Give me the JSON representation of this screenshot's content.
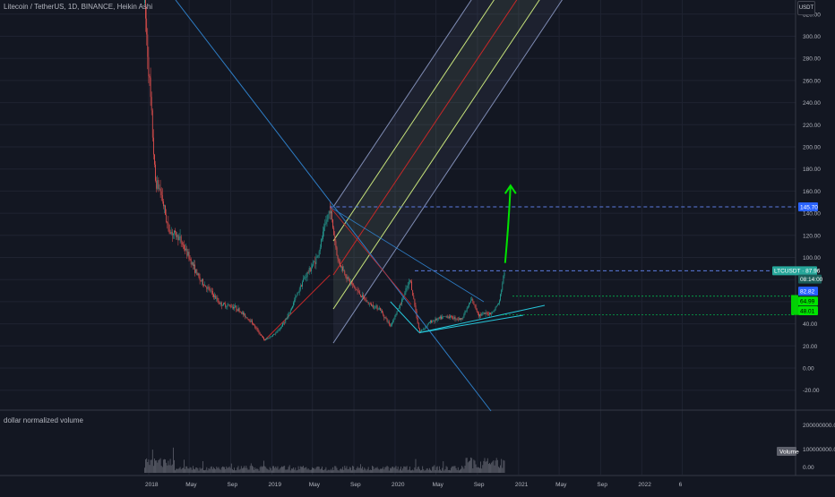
{
  "header": {
    "symbol_line": "Litecoin / TetherUS, 1D, BINANCE, Heikin Ashi",
    "currency": "USDT"
  },
  "volume_pane": {
    "title": "dollar normalized volume",
    "badge": "Volume",
    "y_ticks": [
      "200000000.00",
      "100000000.00",
      "0.00"
    ]
  },
  "chart_data": {
    "type": "candlestick",
    "title": "Litecoin / TetherUS, 1D, BINANCE, Heikin Ashi",
    "ylabel": "",
    "ylim": [
      -30,
      330
    ],
    "y_ticks": [
      320,
      300,
      280,
      260,
      240,
      220,
      200,
      180,
      160,
      140,
      120,
      100,
      80,
      60,
      40,
      20,
      0,
      -20
    ],
    "y_tick_labels": [
      "320.00",
      "300.00",
      "280.00",
      "260.00",
      "240.00",
      "220.00",
      "200.00",
      "180.00",
      "160.00",
      "140.00",
      "120.00",
      "100.00",
      "80.00",
      "60.00",
      "40.00",
      "20.00",
      "0.00",
      "-20.00"
    ],
    "x_ticks": [
      "2018",
      "May",
      "Sep",
      "2019",
      "May",
      "Sep",
      "2020",
      "May",
      "Sep",
      "2021",
      "May",
      "Sep",
      "2022",
      "6"
    ],
    "price_path": [
      [
        "2017-12-20",
        330
      ],
      [
        "2018-01-05",
        250
      ],
      [
        "2018-01-20",
        170
      ],
      [
        "2018-02-05",
        160
      ],
      [
        "2018-03-01",
        125
      ],
      [
        "2018-04-01",
        118
      ],
      [
        "2018-05-01",
        100
      ],
      [
        "2018-06-01",
        80
      ],
      [
        "2018-07-01",
        70
      ],
      [
        "2018-08-01",
        58
      ],
      [
        "2018-09-15",
        55
      ],
      [
        "2018-11-01",
        42
      ],
      [
        "2018-12-10",
        25
      ],
      [
        "2019-01-15",
        32
      ],
      [
        "2019-02-15",
        45
      ],
      [
        "2019-04-01",
        78
      ],
      [
        "2019-05-15",
        100
      ],
      [
        "2019-06-22",
        145
      ],
      [
        "2019-07-15",
        98
      ],
      [
        "2019-08-15",
        80
      ],
      [
        "2019-09-15",
        68
      ],
      [
        "2019-10-15",
        58
      ],
      [
        "2019-11-15",
        54
      ],
      [
        "2019-12-18",
        38
      ],
      [
        "2020-01-20",
        60
      ],
      [
        "2020-02-15",
        80
      ],
      [
        "2020-03-13",
        32
      ],
      [
        "2020-04-15",
        42
      ],
      [
        "2020-06-01",
        47
      ],
      [
        "2020-07-15",
        44
      ],
      [
        "2020-08-15",
        62
      ],
      [
        "2020-09-05",
        48
      ],
      [
        "2020-10-15",
        50
      ],
      [
        "2020-11-05",
        60
      ],
      [
        "2020-11-20",
        87.96
      ]
    ],
    "volume_series": {
      "name": "dollar normalized volume",
      "max": 230000000
    },
    "annotations": {
      "price_tags": [
        {
          "label": "LTCUSDT",
          "value": "87.96",
          "color": "#26a69a"
        },
        {
          "label": "",
          "value": "08:14:00",
          "color": "#26a69a"
        },
        {
          "label": "",
          "value": "145.70",
          "color": "#2962ff"
        },
        {
          "label": "",
          "value": "82.82",
          "color": "#2962ff"
        },
        {
          "label": "",
          "value": "64.99",
          "color": "#00e400"
        },
        {
          "label": "",
          "value": "48.01",
          "color": "#00e400"
        }
      ],
      "levels": [
        145.7,
        87.96,
        82.82,
        64.99,
        48.01
      ],
      "pitchfork_anchor": [
        "2019-06-22",
        145.7
      ],
      "target_arrow": [
        [
          "2020-11-22",
          95
        ],
        [
          "2020-12-08",
          165
        ]
      ]
    },
    "colors": {
      "background": "#131722",
      "up_candle": "#26a69a",
      "down_candle": "#ef5350",
      "median_line": "#c62828",
      "inner_lines": "#c5e17a",
      "outer_lines": "#7e8bb3",
      "level_lines": "#2962ff",
      "support_lines": "#00c853",
      "arrow": "#00e400",
      "trend_line": "#2e7dc5"
    }
  }
}
